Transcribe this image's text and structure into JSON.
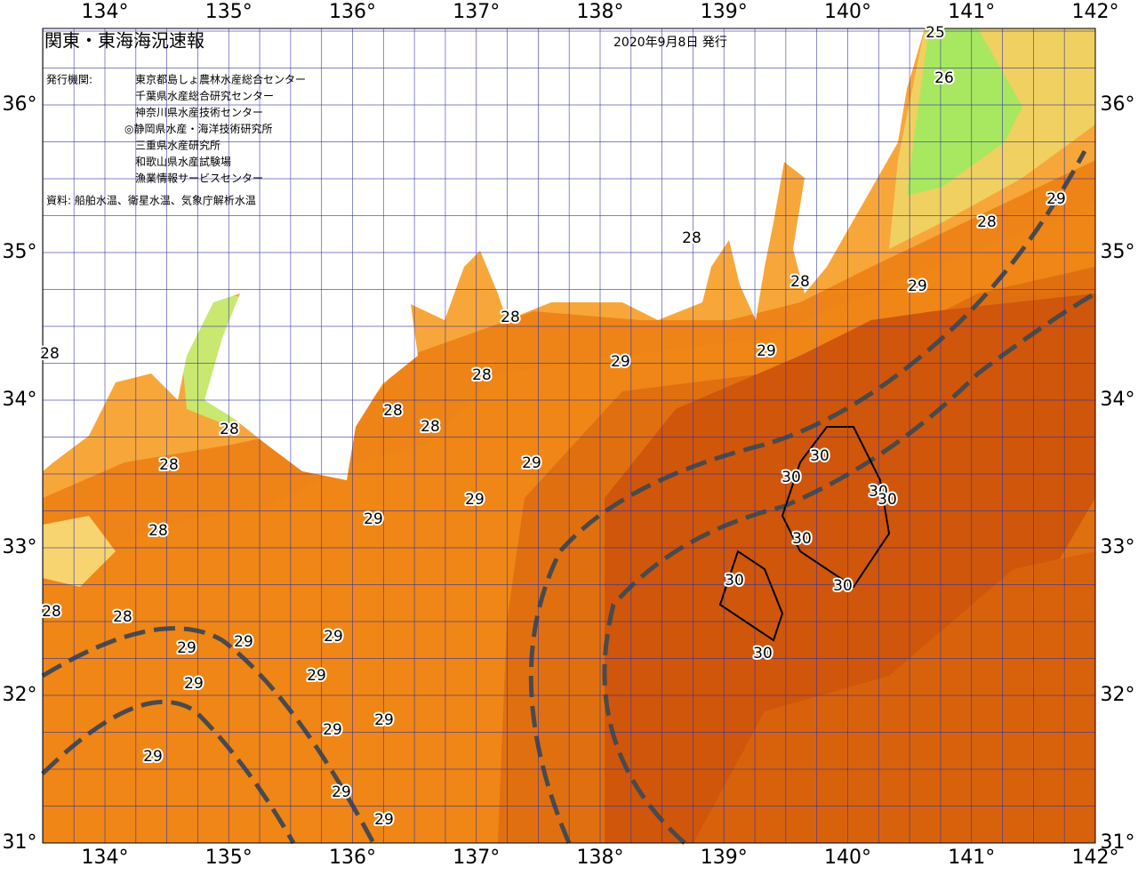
{
  "header": {
    "title": "関東・東海海況速報",
    "date": "2020年9月8日 発行"
  },
  "issuer": {
    "label": "発行機関:",
    "names": [
      "東京都島しょ農林水産総合センター",
      "千葉県水産総合研究センター",
      "神奈川県水産技術センター",
      "◎静岡県水産・海洋技術研究所",
      "三重県水産研究所",
      "和歌山県水産試験場",
      "漁業情報サービスセンター"
    ]
  },
  "source": "資料: 船舶水温、衛星水温、気象庁解析水温",
  "lon_labels": [
    "134°",
    "135°",
    "136°",
    "137°",
    "138°",
    "139°",
    "140°",
    "141°",
    "142°"
  ],
  "lat_labels": [
    "36°",
    "35°",
    "34°",
    "33°",
    "32°",
    "31°"
  ],
  "contour_labels": [
    "25",
    "26",
    "29",
    "28",
    "28",
    "28",
    "29",
    "28",
    "29",
    "29",
    "28",
    "28",
    "28",
    "28",
    "28",
    "29",
    "30",
    "30",
    "28",
    "30",
    "30",
    "29",
    "29",
    "28",
    "30",
    "30",
    "30",
    "28",
    "28",
    "29",
    "29",
    "29",
    "30",
    "29",
    "29",
    "29",
    "29",
    "29",
    "29",
    "29"
  ]
}
